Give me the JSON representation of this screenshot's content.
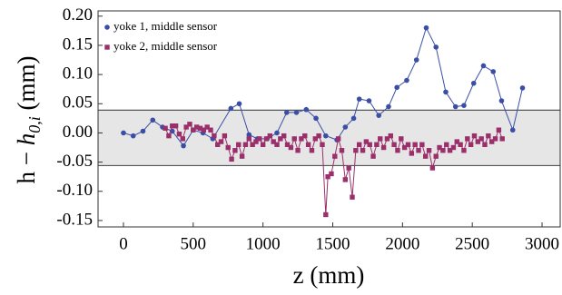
{
  "chart_data": {
    "type": "line",
    "xlabel": "z (mm)",
    "ylabel": [
      "h − ",
      "h",
      "0,i",
      " (mm)"
    ],
    "xlim": [
      -182,
      3130
    ],
    "ylim": [
      -0.161,
      0.209
    ],
    "xticks": [
      0,
      500,
      1000,
      1500,
      2000,
      2500,
      3000
    ],
    "yticks": [
      {
        "value": 0.2,
        "label": "0.20"
      },
      {
        "value": 0.15,
        "label": "0.15"
      },
      {
        "value": 0.1,
        "label": "0.10"
      },
      {
        "value": 0.05,
        "label": "0.05"
      },
      {
        "value": 0,
        "label": "0.00"
      },
      {
        "value": -0.05,
        "label": "-0.05"
      },
      {
        "value": -0.1,
        "label": "-0.10"
      },
      {
        "value": -0.15,
        "label": "-0.15"
      }
    ],
    "band": [
      -0.056,
      0.039
    ],
    "band_color": "#e6e6e6",
    "legend": "upper left",
    "series": [
      {
        "name": "yoke 1, middle sensor",
        "color": "#3b4ea6",
        "marker": "circle",
        "line": true,
        "x": [
          0,
          70,
          140,
          210,
          280,
          350,
          430,
          500,
          570,
          640,
          770,
          830,
          900,
          960,
          1030,
          1100,
          1170,
          1240,
          1310,
          1380,
          1450,
          1530,
          1590,
          1650,
          1690,
          1760,
          1830,
          1900,
          1960,
          2030,
          2100,
          2170,
          2240,
          2310,
          2380,
          2440,
          2510,
          2580,
          2650,
          2710,
          2790,
          2860
        ],
        "values": [
          0.0,
          -0.005,
          0.003,
          0.022,
          0.01,
          0.003,
          -0.022,
          0.005,
          0.0,
          -0.01,
          0.042,
          0.05,
          -0.003,
          -0.01,
          -0.01,
          0.0,
          0.035,
          0.035,
          0.04,
          0.025,
          -0.005,
          -0.012,
          0.01,
          0.025,
          0.058,
          0.055,
          0.03,
          0.045,
          0.078,
          0.09,
          0.125,
          0.18,
          0.147,
          0.07,
          0.045,
          0.047,
          0.085,
          0.115,
          0.105,
          0.055,
          0.005,
          0.077
        ]
      },
      {
        "name": "yoke 2, middle sensor",
        "color": "#9b2f6b",
        "marker": "square",
        "line": true,
        "x": [
          300,
          325,
          350,
          375,
          400,
          425,
          450,
          475,
          500,
          525,
          550,
          575,
          600,
          625,
          650,
          675,
          700,
          725,
          750,
          775,
          800,
          825,
          850,
          875,
          900,
          925,
          950,
          975,
          1000,
          1025,
          1050,
          1075,
          1100,
          1125,
          1150,
          1175,
          1200,
          1225,
          1250,
          1275,
          1300,
          1325,
          1350,
          1375,
          1400,
          1425,
          1450,
          1465,
          1490,
          1515,
          1540,
          1565,
          1590,
          1615,
          1640,
          1665,
          1690,
          1715,
          1740,
          1765,
          1790,
          1815,
          1840,
          1865,
          1890,
          1915,
          1940,
          1965,
          1990,
          2015,
          2040,
          2065,
          2090,
          2115,
          2140,
          2165,
          2190,
          2215,
          2240,
          2265,
          2290,
          2315,
          2340,
          2365,
          2390,
          2415,
          2440,
          2465,
          2490,
          2515,
          2540,
          2565,
          2590,
          2615,
          2640,
          2665,
          2690,
          2715
        ],
        "values": [
          0.008,
          -0.005,
          0.012,
          0.012,
          -0.002,
          -0.01,
          0.01,
          0.015,
          0.005,
          0.01,
          0.008,
          0.005,
          0.01,
          0.005,
          -0.005,
          -0.02,
          -0.015,
          -0.005,
          -0.025,
          -0.045,
          -0.03,
          -0.02,
          -0.04,
          -0.02,
          -0.01,
          -0.02,
          -0.015,
          -0.01,
          -0.02,
          -0.01,
          -0.005,
          -0.015,
          -0.02,
          -0.01,
          -0.005,
          -0.02,
          -0.025,
          -0.01,
          -0.03,
          -0.01,
          -0.005,
          -0.02,
          -0.03,
          -0.01,
          -0.005,
          -0.02,
          -0.14,
          -0.075,
          -0.07,
          -0.04,
          -0.01,
          -0.03,
          -0.08,
          -0.06,
          -0.11,
          -0.03,
          -0.02,
          -0.03,
          -0.015,
          -0.02,
          -0.04,
          -0.02,
          -0.01,
          -0.025,
          -0.01,
          -0.005,
          -0.02,
          -0.03,
          -0.01,
          -0.025,
          -0.02,
          -0.035,
          -0.02,
          -0.03,
          -0.02,
          -0.04,
          -0.03,
          -0.06,
          -0.04,
          -0.025,
          -0.03,
          -0.02,
          -0.03,
          -0.025,
          -0.015,
          -0.02,
          -0.03,
          -0.01,
          -0.02,
          -0.005,
          -0.015,
          -0.01,
          -0.02,
          -0.005,
          -0.015,
          -0.01,
          0.005,
          -0.01
        ]
      }
    ]
  }
}
